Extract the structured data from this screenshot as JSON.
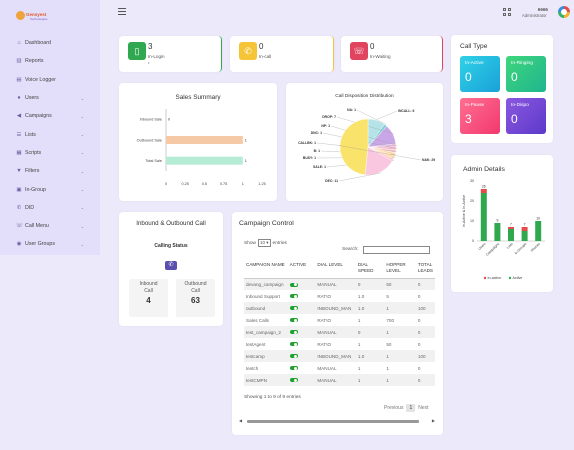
{
  "logo": {
    "line1": "Gensyest",
    "line2": "Technologies"
  },
  "sidebar": {
    "items": [
      {
        "label": "Dashboard",
        "icon": "home-icon",
        "glyph": "⌂",
        "expandable": false
      },
      {
        "label": "Reports",
        "icon": "chart-icon",
        "glyph": "▥",
        "expandable": false
      },
      {
        "label": "Voice Logger",
        "icon": "file-icon",
        "glyph": "▤",
        "expandable": false
      },
      {
        "label": "Users",
        "icon": "user-icon",
        "glyph": "●",
        "expandable": true
      },
      {
        "label": "Campaigns",
        "icon": "megaphone-icon",
        "glyph": "◀",
        "expandable": true
      },
      {
        "label": "Lists",
        "icon": "list-icon",
        "glyph": "☰",
        "expandable": true
      },
      {
        "label": "Scripts",
        "icon": "script-icon",
        "glyph": "▦",
        "expandable": true
      },
      {
        "label": "Filters",
        "icon": "filter-icon",
        "glyph": "▼",
        "expandable": true
      },
      {
        "label": "In-Group",
        "icon": "group-icon",
        "glyph": "▣",
        "expandable": true
      },
      {
        "label": "DID",
        "icon": "phone-icon",
        "glyph": "✆",
        "expandable": true
      },
      {
        "label": "Call Menu",
        "icon": "call-menu-icon",
        "glyph": "☏",
        "expandable": true
      },
      {
        "label": "User Groups",
        "icon": "users-icon",
        "glyph": "◉",
        "expandable": true
      }
    ]
  },
  "topbar": {
    "user_name": "6666",
    "user_role": "Administrator"
  },
  "stats": [
    {
      "value": "3",
      "label": "In-Login",
      "extra": "•",
      "color": "#2fa84f",
      "icon": "phone-icon",
      "glyph": "▯"
    },
    {
      "value": "0",
      "label": "In-call",
      "extra": "",
      "color": "#f5c437",
      "icon": "phone-call-icon",
      "glyph": "✆"
    },
    {
      "value": "0",
      "label": "In-Waiting",
      "extra": "",
      "color": "#e0445e",
      "icon": "phone-waiting-icon",
      "glyph": "☏"
    }
  ],
  "call_type": {
    "title": "Call Type",
    "boxes": [
      {
        "label": "In-Active",
        "value": "0"
      },
      {
        "label": "In-Ringing",
        "value": "0"
      },
      {
        "label": "In-Pause",
        "value": "3"
      },
      {
        "label": "In-Dispo",
        "value": "0"
      }
    ]
  },
  "sales_summary": {
    "title": "Sales Summary"
  },
  "call_disposition": {
    "title": "Call Disposition Distribution"
  },
  "admin_details": {
    "title": "Admin Details"
  },
  "inbound_outbound": {
    "title": "Inbound & Outbound Call",
    "status_label": "Calling Status",
    "inbound_label": "Inbound Call",
    "inbound_value": "4",
    "outbound_label": "Outbound Call",
    "outbound_value": "63"
  },
  "campaign_control": {
    "title": "Campaign Control",
    "show_label": "Show",
    "entries_value": "10",
    "entries_label": "entries",
    "search_label": "Search:",
    "search_value": "",
    "columns": [
      "CAMPAIGN NAME",
      "ACTIVE",
      "DIAL LEVEL",
      "DIAL SPEED",
      "HOPPER LEVEL",
      "TOTAL LEADS"
    ],
    "rows": [
      [
        "devang_campaign",
        "on",
        "MANUAL",
        "0",
        "50",
        "0"
      ],
      [
        "Inbound Support",
        "on",
        "RATIO",
        "1.0",
        "5",
        "0"
      ],
      [
        "outbound",
        "on",
        "INBOUND_MAN",
        "1.0",
        "1",
        "100"
      ],
      [
        "Sales Calls",
        "on",
        "RATIO",
        "1",
        "700",
        "0"
      ],
      [
        "test_campaign_2",
        "on",
        "MANUAL",
        "0",
        "1",
        "0"
      ],
      [
        "testAgent",
        "on",
        "RATIO",
        "1",
        "50",
        "0"
      ],
      [
        "testcamp",
        "on",
        "INBOUND_MAN",
        "1.0",
        "1",
        "100"
      ],
      [
        "testch",
        "on",
        "MANUAL",
        "1",
        "1",
        "0"
      ],
      [
        "testCMPN",
        "on",
        "MANUAL",
        "1",
        "1",
        "0"
      ]
    ],
    "info": "Showing 1 to 9 of 9 entries",
    "prev_label": "Previous",
    "page": "1",
    "next_label": "Next"
  },
  "chart_data": [
    {
      "type": "bar",
      "orientation": "horizontal",
      "title": "Sales Summary",
      "categories": [
        "Inbound Sale",
        "Outbound Sale",
        "Total Sale"
      ],
      "values": [
        0,
        1,
        1
      ],
      "colors": [
        "#f5c9a6",
        "#f5c9a6",
        "#b6ebd5"
      ],
      "xticks": [
        "0",
        "0.25",
        "0.5",
        "0.75",
        "1",
        "1.25"
      ],
      "xlim": [
        0,
        1.25
      ]
    },
    {
      "type": "pie",
      "title": "Call Disposition Distribution",
      "labels": [
        "INCALL",
        "NA",
        "DROP",
        "NP",
        "DNC",
        "CALLBK",
        "B",
        "BUSY",
        "SALE",
        "DEC",
        "NAK"
      ],
      "values": [
        6,
        1,
        7,
        1,
        1,
        1,
        1,
        1,
        1,
        11,
        29
      ],
      "label_text": [
        "INCALL: 6",
        "NA: 1",
        "DROP: 7",
        "NP: 1",
        "DNC: 1",
        "CALLBK: 1",
        "B: 1",
        "BUSY: 1",
        "SALE: 1",
        "DEC: 11",
        "NAK: 29"
      ],
      "colors": [
        "#b6e3e8",
        "#7fd1d9",
        "#c9a7e6",
        "#e7b3d8",
        "#f2b6c7",
        "#f7c6c6",
        "#ffd6a8",
        "#ffe29a",
        "#ffc9d6",
        "#f9c7df",
        "#f9e36a"
      ]
    },
    {
      "type": "bar",
      "stacked": true,
      "title": "Admin Details",
      "ylabel": "In-Active & In-Active",
      "categories": [
        "Users",
        "Campaigns",
        "Lists",
        "In-Groups",
        "Phones"
      ],
      "series": [
        {
          "name": "In-active",
          "values": [
            2,
            0,
            1,
            2,
            0
          ],
          "color": "#e24c4c"
        },
        {
          "name": "Active",
          "values": [
            24,
            9,
            6,
            5,
            10
          ],
          "color": "#2fa84f"
        }
      ],
      "totals": [
        26,
        9,
        7,
        7,
        10
      ],
      "ylim": [
        0,
        30
      ],
      "yticks": [
        "30",
        "20",
        "10",
        "0"
      ]
    }
  ]
}
